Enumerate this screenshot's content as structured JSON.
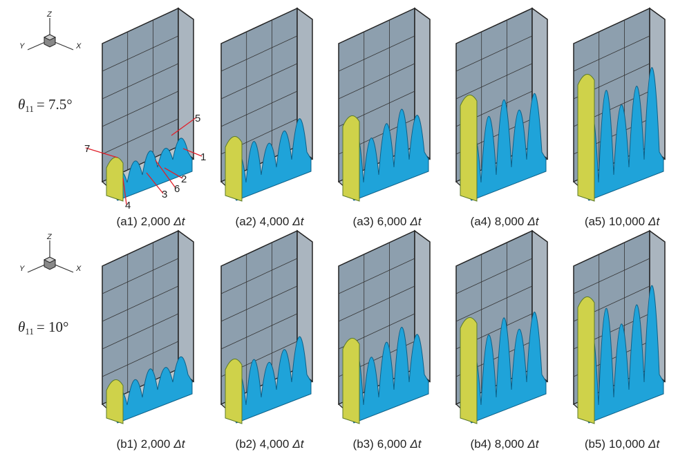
{
  "rows": [
    {
      "axes": {
        "z": "Z",
        "y": "Y",
        "x": "X"
      },
      "theta": {
        "symbol": "θ",
        "subscript": "11",
        "value": "= 7.5°"
      },
      "panels": [
        {
          "id": "(a1)",
          "step": "2,000",
          "unit": "Δt"
        },
        {
          "id": "(a2)",
          "step": "4,000",
          "unit": "Δt"
        },
        {
          "id": "(a3)",
          "step": "6,000",
          "unit": "Δt"
        },
        {
          "id": "(a4)",
          "step": "8,000",
          "unit": "Δt"
        },
        {
          "id": "(a5)",
          "step": "10,000",
          "unit": "Δt"
        }
      ]
    },
    {
      "axes": {
        "z": "Z",
        "y": "Y",
        "x": "X"
      },
      "theta": {
        "symbol": "θ",
        "subscript": "11",
        "value": "= 10°"
      },
      "panels": [
        {
          "id": "(b1)",
          "step": "2,000",
          "unit": "Δt"
        },
        {
          "id": "(b2)",
          "step": "4,000",
          "unit": "Δt"
        },
        {
          "id": "(b3)",
          "step": "6,000",
          "unit": "Δt"
        },
        {
          "id": "(b4)",
          "step": "8,000",
          "unit": "Δt"
        },
        {
          "id": "(b5)",
          "step": "10,000",
          "unit": "Δt"
        }
      ]
    }
  ],
  "annotations": [
    "1",
    "2",
    "3",
    "4",
    "5",
    "6",
    "7"
  ]
}
